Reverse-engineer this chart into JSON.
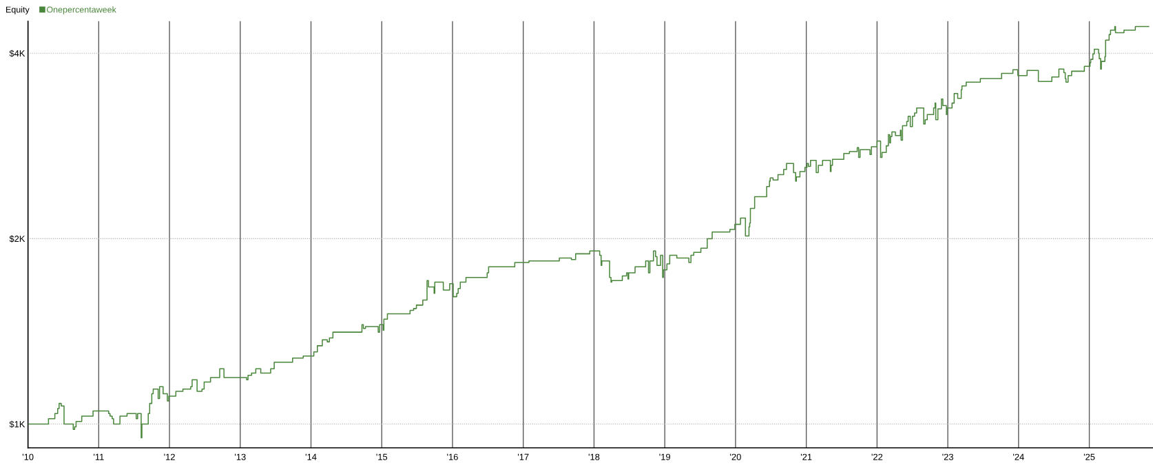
{
  "chart_data": {
    "type": "step",
    "title": "Equity",
    "x": [
      2010.01,
      2010.29,
      2010.38,
      2010.42,
      2010.44,
      2010.47,
      2010.51,
      2010.64,
      2010.66,
      2010.68,
      2010.76,
      2010.92,
      2011.14,
      2011.16,
      2011.19,
      2011.21,
      2011.3,
      2011.4,
      2011.53,
      2011.55,
      2011.6,
      2011.61,
      2011.7,
      2011.72,
      2011.75,
      2011.77,
      2011.84,
      2011.86,
      2011.91,
      2011.97,
      2011.99,
      2012.09,
      2012.19,
      2012.3,
      2012.32,
      2012.39,
      2012.46,
      2012.49,
      2012.58,
      2012.71,
      2012.77,
      2013.09,
      2013.11,
      2013.16,
      2013.22,
      2013.29,
      2013.43,
      2013.48,
      2013.74,
      2013.89,
      2014.04,
      2014.09,
      2014.16,
      2014.23,
      2014.26,
      2014.31,
      2014.72,
      2014.74,
      2014.77,
      2014.95,
      2014.97,
      2015.02,
      2015.03,
      2015.08,
      2015.4,
      2015.45,
      2015.49,
      2015.58,
      2015.64,
      2015.66,
      2015.74,
      2015.75,
      2015.87,
      2015.96,
      2016.01,
      2016.06,
      2016.08,
      2016.11,
      2016.19,
      2016.49,
      2016.51,
      2016.88,
      2017.08,
      2017.51,
      2017.68,
      2017.74,
      2017.94,
      2018.08,
      2018.1,
      2018.11,
      2018.22,
      2018.24,
      2018.25,
      2018.4,
      2018.46,
      2018.48,
      2018.49,
      2018.58,
      2018.73,
      2018.77,
      2018.79,
      2018.84,
      2018.87,
      2018.89,
      2018.94,
      2018.97,
      2018.98,
      2019.03,
      2019.07,
      2019.17,
      2019.34,
      2019.37,
      2019.41,
      2019.51,
      2019.6,
      2019.67,
      2019.92,
      2019.99,
      2020.07,
      2020.14,
      2020.19,
      2020.2,
      2020.21,
      2020.27,
      2020.44,
      2020.48,
      2020.49,
      2020.53,
      2020.6,
      2020.68,
      2020.72,
      2020.82,
      2020.85,
      2020.86,
      2020.91,
      2020.98,
      2021.01,
      2021.03,
      2021.06,
      2021.14,
      2021.17,
      2021.23,
      2021.34,
      2021.35,
      2021.37,
      2021.53,
      2021.61,
      2021.72,
      2021.74,
      2021.76,
      2021.9,
      2021.92,
      2022.0,
      2022.05,
      2022.07,
      2022.13,
      2022.16,
      2022.18,
      2022.19,
      2022.21,
      2022.26,
      2022.33,
      2022.34,
      2022.36,
      2022.42,
      2022.44,
      2022.47,
      2022.5,
      2022.53,
      2022.56,
      2022.66,
      2022.68,
      2022.71,
      2022.8,
      2022.82,
      2022.83,
      2022.86,
      2022.91,
      2022.93,
      2022.98,
      2022.99,
      2023.06,
      2023.09,
      2023.14,
      2023.19,
      2023.2,
      2023.26,
      2023.46,
      2023.76,
      2023.92,
      2023.99,
      2024.12,
      2024.28,
      2024.47,
      2024.57,
      2024.64,
      2024.66,
      2024.67,
      2024.7,
      2024.75,
      2024.93,
      2025.01,
      2025.02,
      2025.05,
      2025.07,
      2025.13,
      2025.14,
      2025.16,
      2025.17,
      2025.22,
      2025.23,
      2025.28,
      2025.3,
      2025.36,
      2025.37,
      2025.49,
      2025.65,
      2025.84
    ],
    "series": [
      {
        "name": "Onepercentaweek",
        "color": "#4a873c",
        "values": [
          1000,
          1020,
          1040,
          1060,
          1080,
          1070,
          1000,
          980,
          990,
          1010,
          1030,
          1050,
          1040,
          1030,
          1020,
          1000,
          1030,
          1040,
          1020,
          1040,
          950,
          1000,
          1040,
          1080,
          1120,
          1140,
          1100,
          1150,
          1120,
          1090,
          1110,
          1130,
          1140,
          1150,
          1180,
          1130,
          1140,
          1170,
          1190,
          1230,
          1190,
          1180,
          1200,
          1210,
          1230,
          1210,
          1230,
          1260,
          1280,
          1290,
          1310,
          1340,
          1370,
          1360,
          1380,
          1410,
          1450,
          1430,
          1440,
          1410,
          1450,
          1420,
          1480,
          1510,
          1530,
          1540,
          1560,
          1590,
          1710,
          1670,
          1630,
          1700,
          1650,
          1690,
          1610,
          1630,
          1660,
          1700,
          1730,
          1760,
          1800,
          1830,
          1840,
          1860,
          1850,
          1890,
          1910,
          1880,
          1810,
          1840,
          1730,
          1700,
          1710,
          1740,
          1760,
          1720,
          1760,
          1800,
          1840,
          1760,
          1840,
          1910,
          1870,
          1810,
          1880,
          1730,
          1780,
          1820,
          1880,
          1860,
          1830,
          1880,
          1900,
          1930,
          2000,
          2050,
          2070,
          2110,
          2160,
          2020,
          2090,
          2120,
          2240,
          2340,
          2430,
          2480,
          2510,
          2490,
          2540,
          2590,
          2650,
          2560,
          2480,
          2520,
          2570,
          2610,
          2650,
          2620,
          2680,
          2560,
          2630,
          2680,
          2570,
          2630,
          2690,
          2750,
          2770,
          2810,
          2710,
          2790,
          2740,
          2820,
          2880,
          2710,
          2760,
          2830,
          2950,
          2860,
          2930,
          2980,
          2940,
          3000,
          2890,
          3050,
          3100,
          3160,
          3040,
          3160,
          3200,
          3260,
          3070,
          3120,
          3180,
          3260,
          3320,
          3120,
          3250,
          3370,
          3290,
          3180,
          3260,
          3320,
          3440,
          3380,
          3490,
          3540,
          3590,
          3640,
          3710,
          3760,
          3680,
          3750,
          3600,
          3660,
          3770,
          3720,
          3640,
          3590,
          3680,
          3740,
          3810,
          3860,
          3910,
          3990,
          4060,
          4000,
          3920,
          3770,
          3880,
          3950,
          4200,
          4290,
          4360,
          4420,
          4320,
          4360,
          4420,
          4420
        ]
      }
    ],
    "xlim": [
      2010,
      2025.9
    ],
    "xticks": [
      {
        "value": 2010,
        "label": "'10"
      },
      {
        "value": 2011,
        "label": "'11"
      },
      {
        "value": 2012,
        "label": "'12"
      },
      {
        "value": 2013,
        "label": "'13"
      },
      {
        "value": 2014,
        "label": "'14"
      },
      {
        "value": 2015,
        "label": "'15"
      },
      {
        "value": 2016,
        "label": "'16"
      },
      {
        "value": 2017,
        "label": "'17"
      },
      {
        "value": 2018,
        "label": "'18"
      },
      {
        "value": 2019,
        "label": "'19"
      },
      {
        "value": 2020,
        "label": "'20"
      },
      {
        "value": 2021,
        "label": "'21"
      },
      {
        "value": 2022,
        "label": "'22"
      },
      {
        "value": 2023,
        "label": "'23"
      },
      {
        "value": 2024,
        "label": "'24"
      },
      {
        "value": 2025,
        "label": "'25"
      }
    ],
    "ylim": [
      915,
      4510
    ],
    "yticks": [
      {
        "value": 1000,
        "label": "$1K"
      },
      {
        "value": 2000,
        "label": "$2K"
      },
      {
        "value": 4000,
        "label": "$4K"
      }
    ],
    "log": true,
    "grid": true,
    "legend": "top left"
  }
}
